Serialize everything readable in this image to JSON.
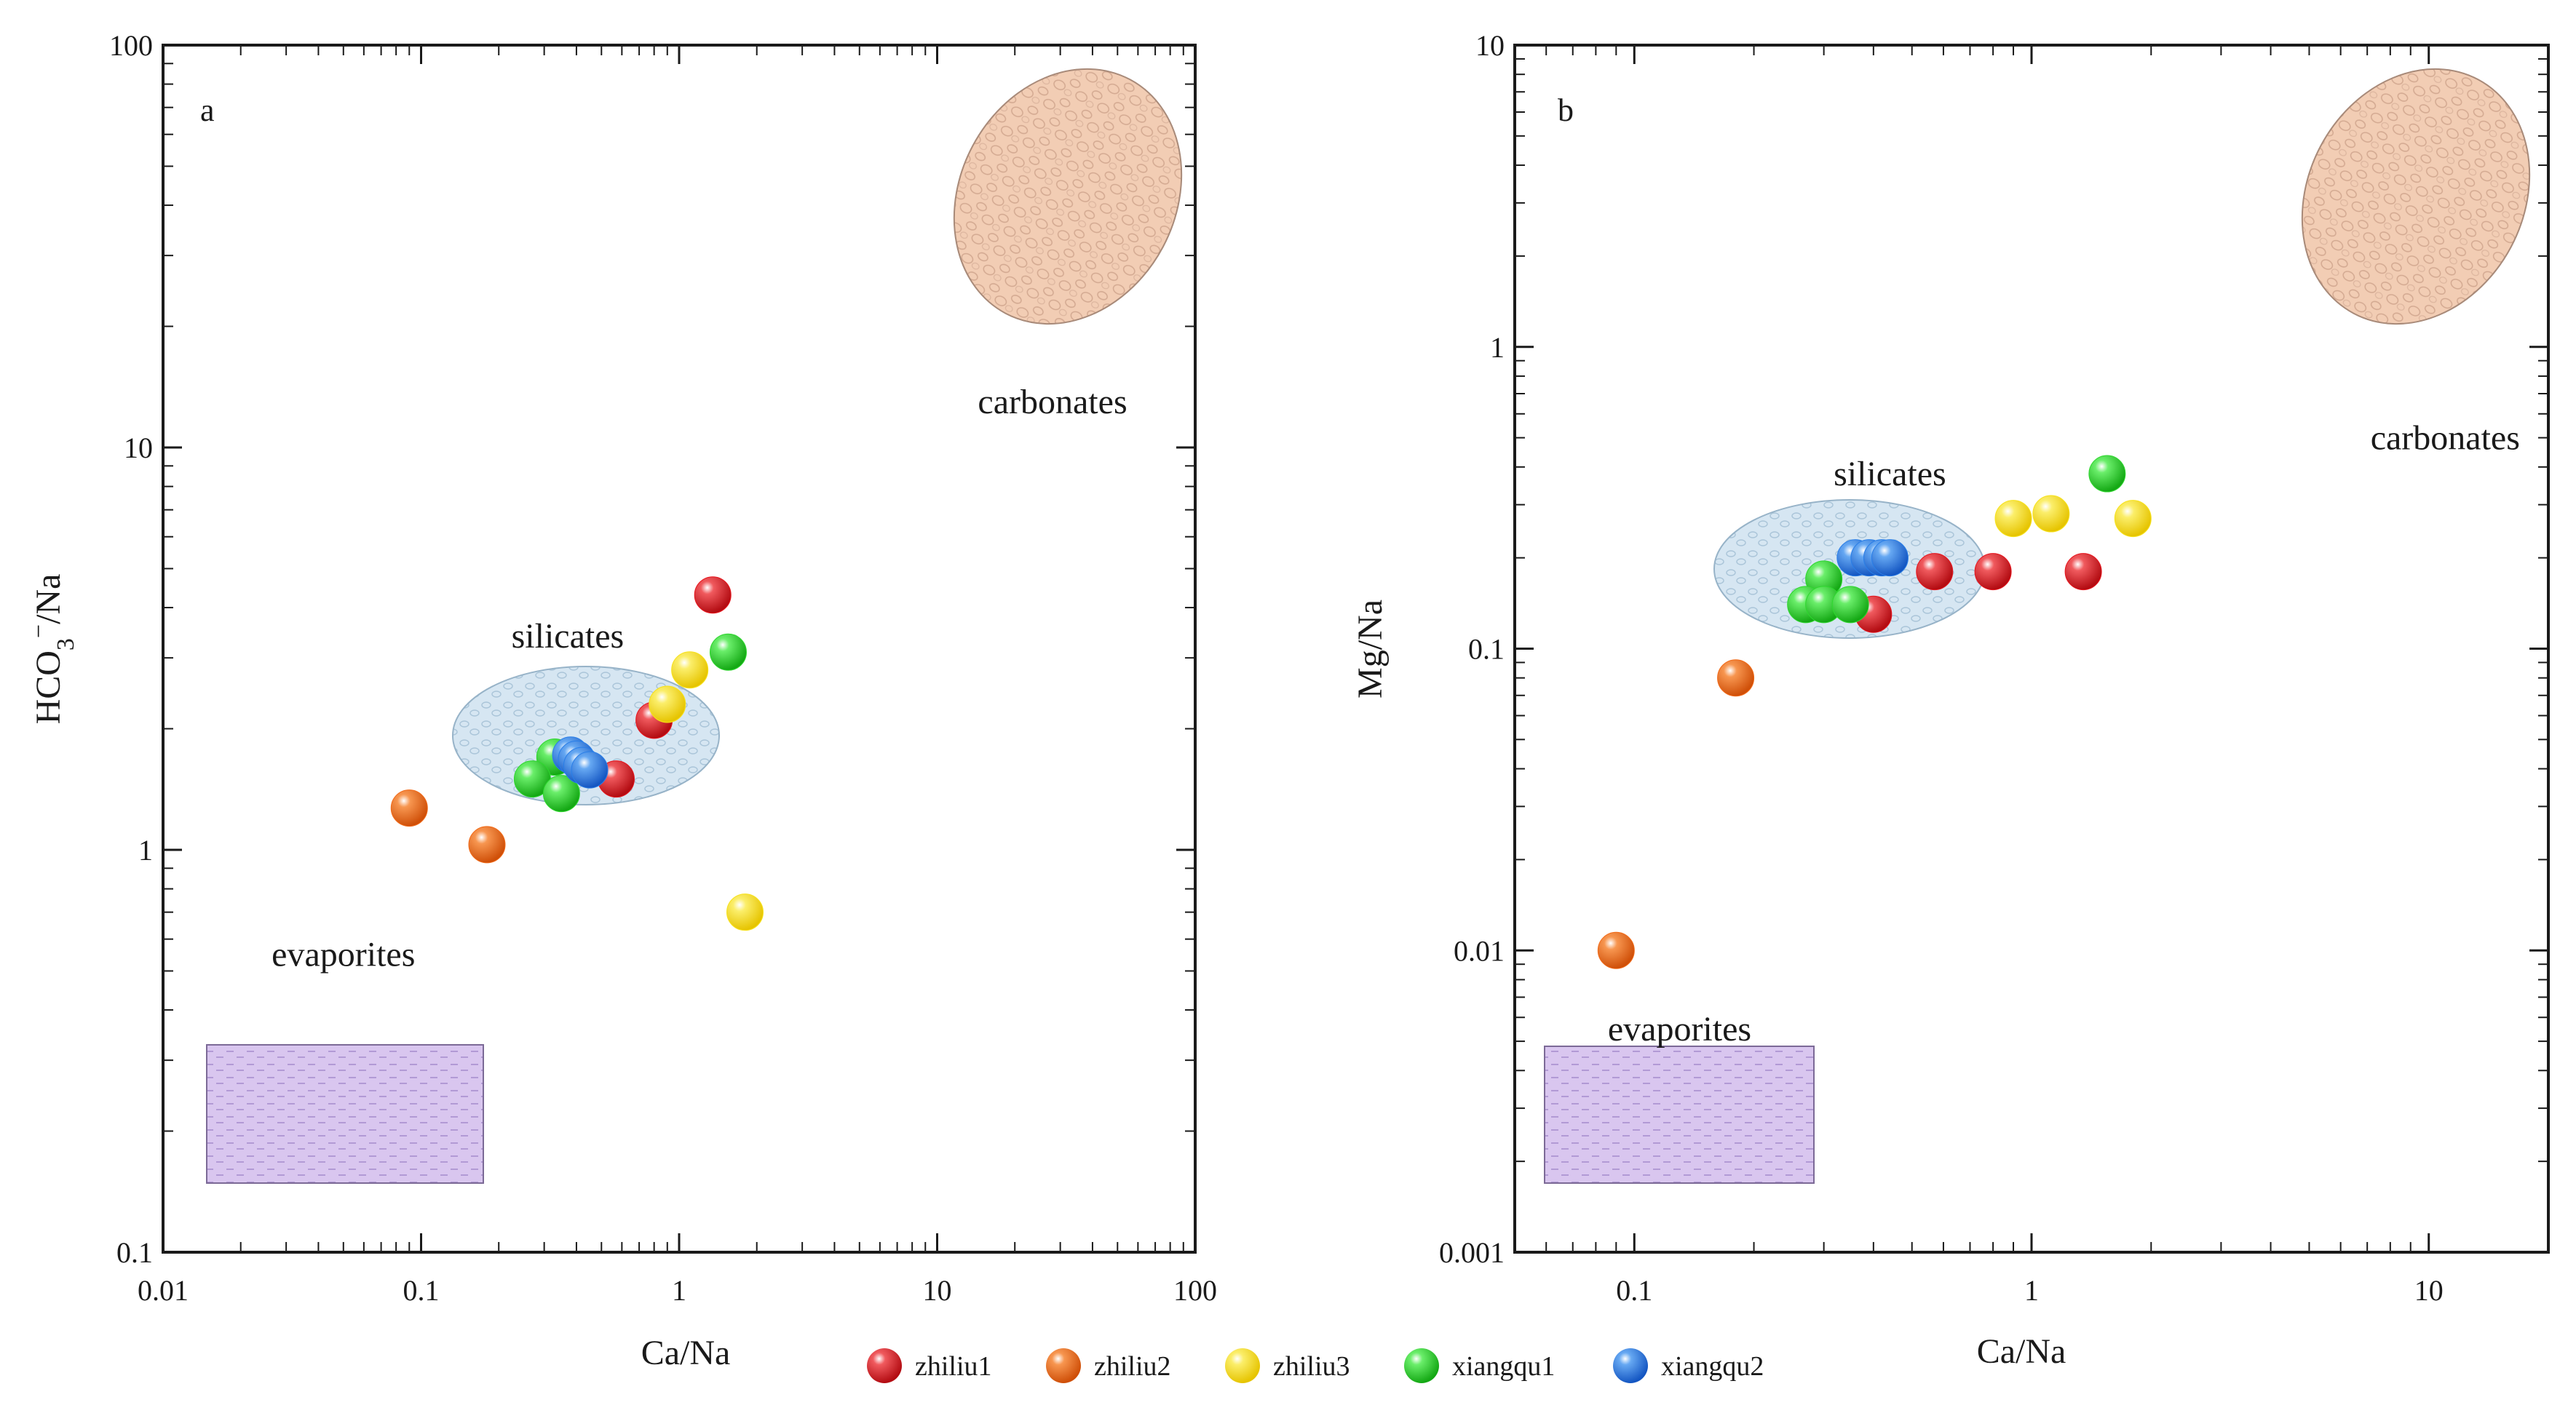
{
  "figure": {
    "legend": [
      {
        "name": "zhiliu1",
        "color": "#e8141c"
      },
      {
        "name": "zhiliu2",
        "color": "#f26a17"
      },
      {
        "name": "zhiliu3",
        "color": "#f7e21a"
      },
      {
        "name": "xiangqu1",
        "color": "#2fd82f"
      },
      {
        "name": "xiangqu2",
        "color": "#2a7fe8"
      }
    ],
    "region_colors": {
      "carbonates": "#f2cdb4",
      "silicates": "#d6e6f2",
      "evaporites": "#d9c6ef"
    }
  },
  "chart_data": [
    {
      "type": "scatter",
      "panel": "a",
      "xscale": "log",
      "yscale": "log",
      "xlabel": "Ca/Na",
      "ylabel_parts": [
        "HCO",
        "3",
        "−",
        "/Na"
      ],
      "xlim": [
        0.01,
        100
      ],
      "ylim": [
        0.1,
        100
      ],
      "xticks": [
        0.01,
        0.1,
        1,
        10,
        100
      ],
      "xticklabels": [
        "0.01",
        "0.1",
        "1",
        "10",
        "100"
      ],
      "yticks": [
        0.1,
        1,
        10,
        100
      ],
      "yticklabels": [
        "0.1",
        "1",
        "10",
        "100"
      ],
      "regions": {
        "carbonates": {
          "label": "carbonates",
          "label_at": [
            28,
            13
          ]
        },
        "silicates": {
          "label": "silicates",
          "label_at": [
            0.37,
            3.4
          ]
        },
        "evaporites": {
          "label": "evaporites",
          "label_at": [
            0.05,
            0.55
          ]
        }
      },
      "series": [
        {
          "name": "zhiliu1",
          "x": [
            1.35,
            0.8,
            0.57
          ],
          "y": [
            4.3,
            2.1,
            1.5
          ]
        },
        {
          "name": "zhiliu2",
          "x": [
            0.09,
            0.18
          ],
          "y": [
            1.27,
            1.03
          ]
        },
        {
          "name": "zhiliu3",
          "x": [
            1.8,
            1.1,
            0.9
          ],
          "y": [
            0.7,
            2.8,
            2.3
          ]
        },
        {
          "name": "xiangqu1",
          "x": [
            1.55,
            0.33,
            0.27,
            0.35
          ],
          "y": [
            3.1,
            1.7,
            1.5,
            1.38
          ]
        },
        {
          "name": "xiangqu2",
          "x": [
            0.38,
            0.4,
            0.42,
            0.45
          ],
          "y": [
            1.72,
            1.68,
            1.62,
            1.58
          ]
        }
      ]
    },
    {
      "type": "scatter",
      "panel": "b",
      "xscale": "log",
      "yscale": "log",
      "xlabel": "Ca/Na",
      "ylabel": "Mg/Na",
      "xlim": [
        0.05,
        20
      ],
      "ylim": [
        0.001,
        10
      ],
      "xticks": [
        0.1,
        1,
        10
      ],
      "xticklabels": [
        "0.1",
        "1",
        "10"
      ],
      "yticks": [
        0.001,
        0.01,
        0.1,
        1,
        10
      ],
      "yticklabels": [
        "0.001",
        "0.01",
        "0.1",
        "1",
        "10"
      ],
      "regions": {
        "carbonates": {
          "label": "carbonates",
          "label_at": [
            11,
            0.5
          ]
        },
        "silicates": {
          "label": "silicates",
          "label_at": [
            0.44,
            0.38
          ]
        },
        "evaporites": {
          "label": "evaporites",
          "label_at": [
            0.13,
            0.0055
          ]
        }
      },
      "series": [
        {
          "name": "zhiliu1",
          "x": [
            1.35,
            0.8,
            0.57,
            0.4
          ],
          "y": [
            0.18,
            0.18,
            0.18,
            0.13
          ]
        },
        {
          "name": "zhiliu2",
          "x": [
            0.09,
            0.18
          ],
          "y": [
            0.01,
            0.08
          ]
        },
        {
          "name": "zhiliu3",
          "x": [
            0.9,
            1.12,
            1.8
          ],
          "y": [
            0.27,
            0.28,
            0.27
          ]
        },
        {
          "name": "xiangqu1",
          "x": [
            1.55,
            0.3,
            0.27,
            0.3,
            0.35
          ],
          "y": [
            0.38,
            0.17,
            0.14,
            0.14,
            0.14
          ]
        },
        {
          "name": "xiangqu2",
          "x": [
            0.36,
            0.39,
            0.42,
            0.44
          ],
          "y": [
            0.2,
            0.2,
            0.2,
            0.2
          ]
        }
      ]
    }
  ]
}
